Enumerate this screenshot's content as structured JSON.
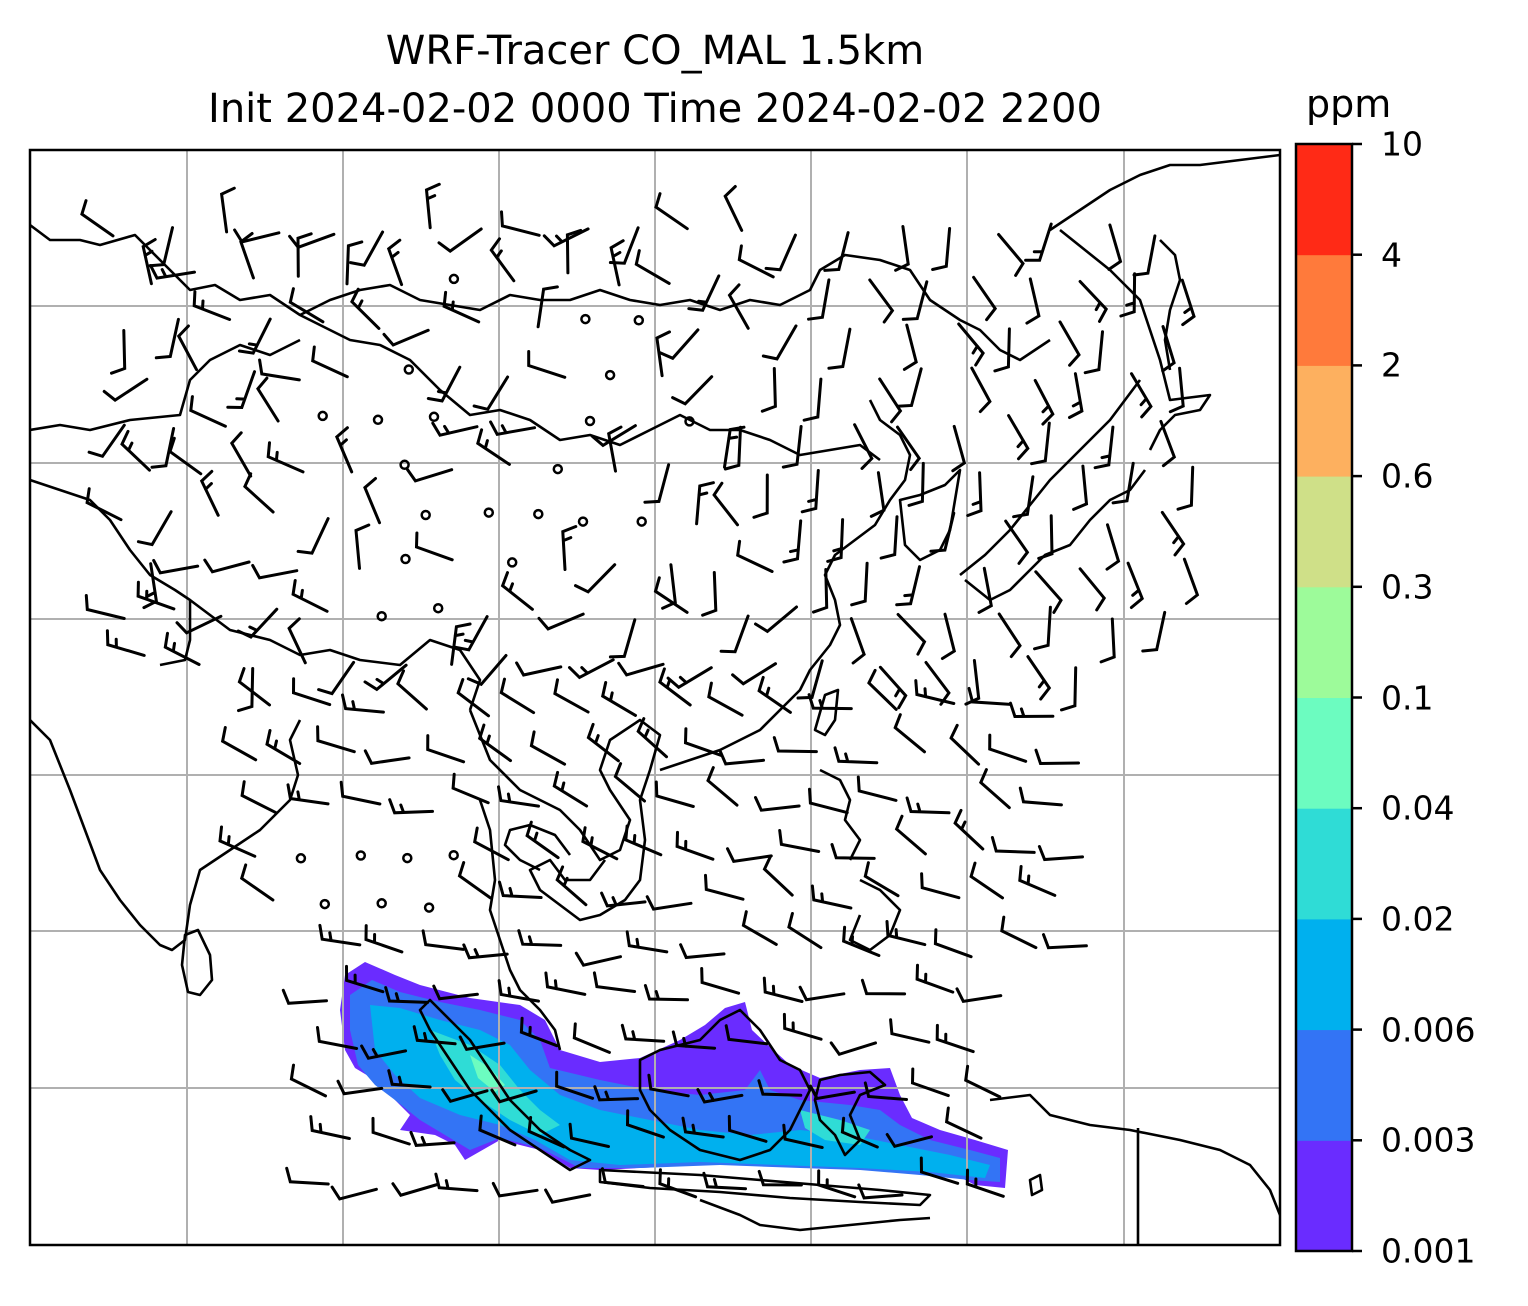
{
  "title": {
    "line1": "WRF-Tracer CO_MAL 1.5km",
    "line2": "Init 2024-02-02 0000 Time 2024-02-02 2200"
  },
  "colorbar": {
    "unit": "ppm",
    "levels": [
      "0.001",
      "0.003",
      "0.006",
      "0.02",
      "0.04",
      "0.1",
      "0.3",
      "0.6",
      "2",
      "4",
      "10"
    ],
    "colors": [
      "#6a2cff",
      "#3374f5",
      "#00b0ee",
      "#2fdcd6",
      "#6cfcc0",
      "#9dfb9a",
      "#cfe088",
      "#fdb05f",
      "#ff7a3b",
      "#ff2a16"
    ]
  },
  "map": {
    "background": "#ffffff",
    "coastline_color": "#000000",
    "grid": true,
    "grid_color": "#b0b0b0",
    "vector_field": "wind barbs"
  }
}
